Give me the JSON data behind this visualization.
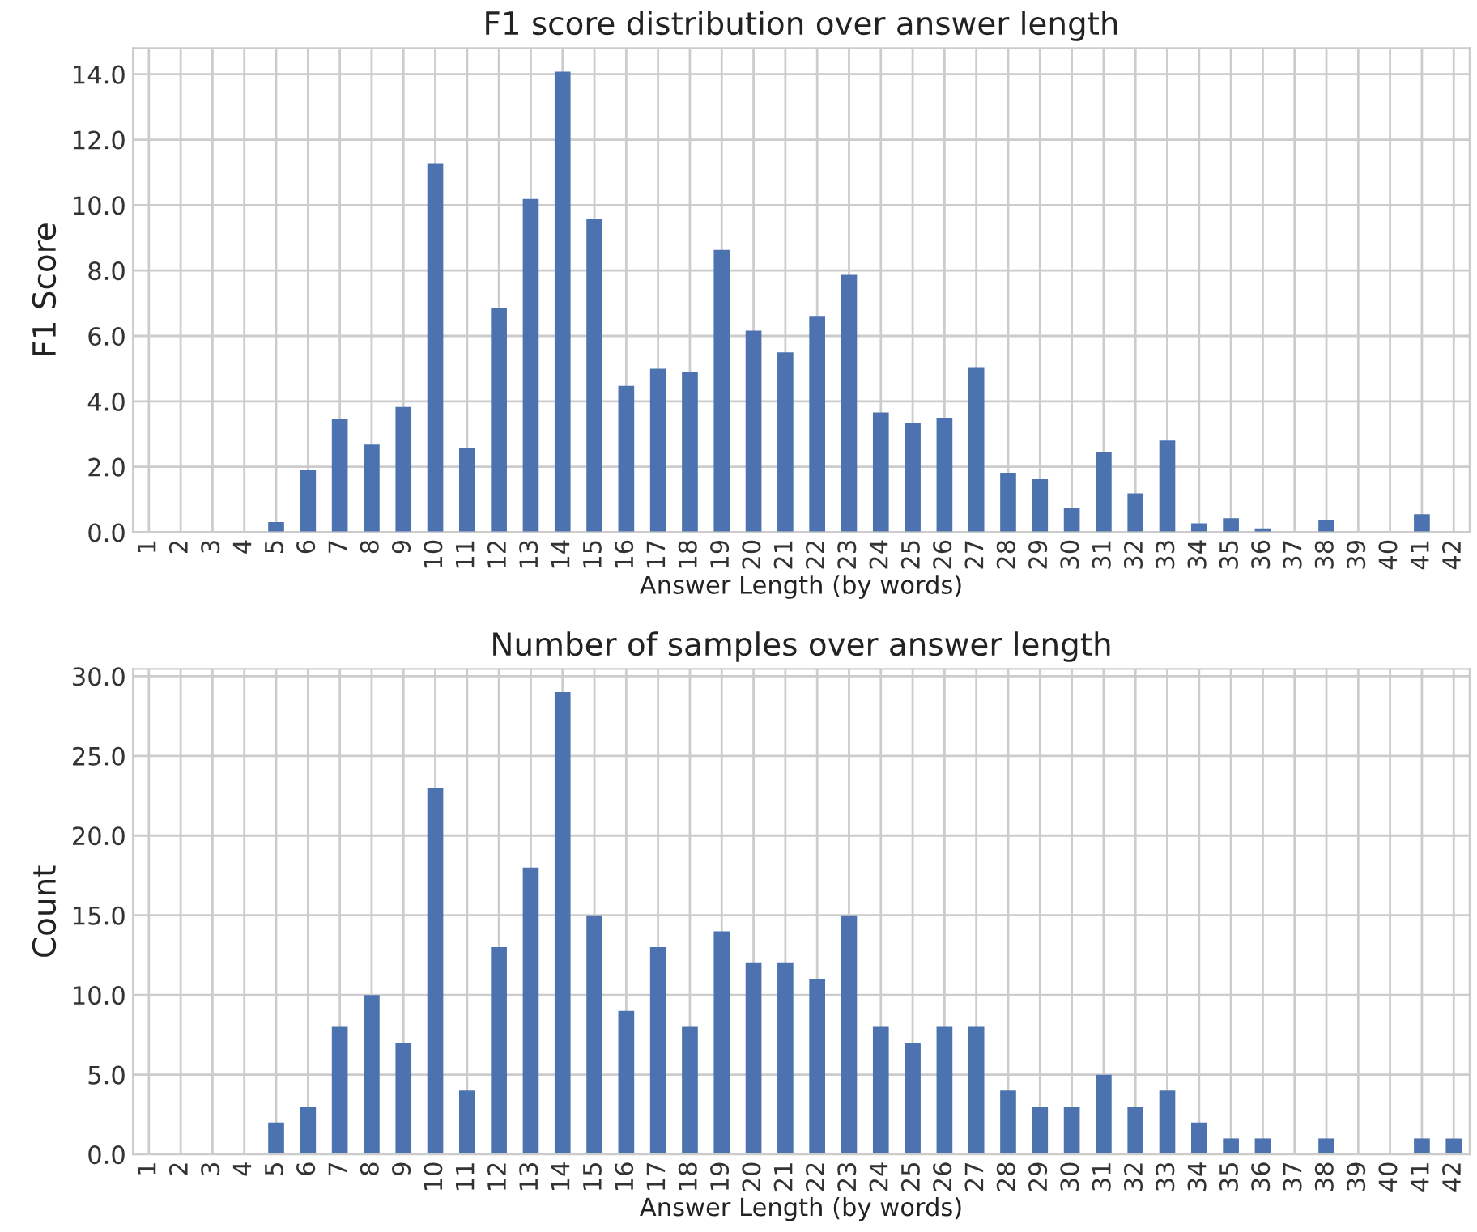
{
  "chart_data": [
    {
      "type": "bar",
      "title": "F1 score distribution over answer length",
      "xlabel": "Answer Length (by words)",
      "ylabel": "F1 Score",
      "color": "#4c72b0",
      "grid": true,
      "categories": [
        "1",
        "2",
        "3",
        "4",
        "5",
        "6",
        "7",
        "8",
        "9",
        "10",
        "11",
        "12",
        "13",
        "14",
        "15",
        "16",
        "17",
        "18",
        "19",
        "20",
        "21",
        "22",
        "23",
        "24",
        "25",
        "26",
        "27",
        "28",
        "29",
        "30",
        "31",
        "32",
        "33",
        "34",
        "35",
        "36",
        "37",
        "38",
        "39",
        "40",
        "41",
        "42"
      ],
      "values": [
        0,
        0,
        0,
        0,
        0.31,
        1.89,
        3.45,
        2.68,
        3.83,
        11.28,
        2.58,
        6.84,
        10.19,
        14.08,
        9.59,
        4.47,
        5.0,
        4.9,
        8.63,
        6.16,
        5.5,
        6.59,
        7.87,
        3.66,
        3.35,
        3.5,
        5.02,
        1.82,
        1.62,
        0.75,
        2.44,
        1.19,
        2.8,
        0.27,
        0.43,
        0.12,
        0,
        0.38,
        0,
        0,
        0.55,
        0
      ],
      "ylim": [
        0,
        14.8
      ],
      "yticks": [
        {
          "value": 0,
          "label": "0.0"
        },
        {
          "value": 2,
          "label": "2.0"
        },
        {
          "value": 4,
          "label": "4.0"
        },
        {
          "value": 6,
          "label": "6.0"
        },
        {
          "value": 8,
          "label": "8.0"
        },
        {
          "value": 10,
          "label": "10.0"
        },
        {
          "value": 12,
          "label": "12.0"
        },
        {
          "value": 14,
          "label": "14.0"
        }
      ]
    },
    {
      "type": "bar",
      "title": "Number of samples over answer length",
      "xlabel": "Answer Length (by words)",
      "ylabel": "Count",
      "color": "#4c72b0",
      "grid": true,
      "categories": [
        "1",
        "2",
        "3",
        "4",
        "5",
        "6",
        "7",
        "8",
        "9",
        "10",
        "11",
        "12",
        "13",
        "14",
        "15",
        "16",
        "17",
        "18",
        "19",
        "20",
        "21",
        "22",
        "23",
        "24",
        "25",
        "26",
        "27",
        "28",
        "29",
        "30",
        "31",
        "32",
        "33",
        "34",
        "35",
        "36",
        "37",
        "38",
        "39",
        "40",
        "41",
        "42"
      ],
      "values": [
        0,
        0,
        0,
        0,
        2,
        3,
        8,
        10,
        7,
        23,
        4,
        13,
        18,
        29,
        15,
        9,
        13,
        8,
        14,
        12,
        12,
        11,
        15,
        8,
        7,
        8,
        8,
        4,
        3,
        3,
        5,
        3,
        4,
        2,
        1,
        1,
        0,
        1,
        0,
        0,
        1,
        1
      ],
      "ylim": [
        0,
        30.45
      ],
      "yticks": [
        {
          "value": 0,
          "label": "0.0"
        },
        {
          "value": 5,
          "label": "5.0"
        },
        {
          "value": 10,
          "label": "10.0"
        },
        {
          "value": 15,
          "label": "15.0"
        },
        {
          "value": 20,
          "label": "20.0"
        },
        {
          "value": 25,
          "label": "25.0"
        },
        {
          "value": 30,
          "label": "30.0"
        }
      ]
    }
  ]
}
